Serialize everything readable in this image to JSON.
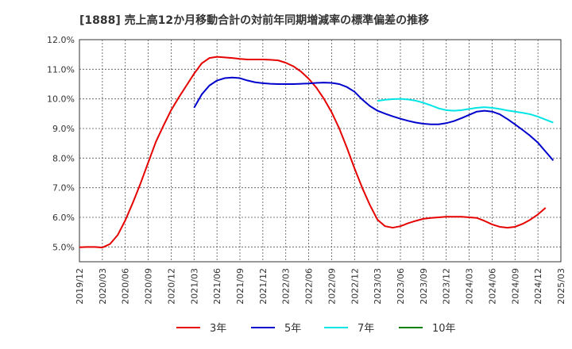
{
  "chart_data": {
    "type": "line",
    "title": "[1888]  売上高12か月移動合計の対前年同期増減率の標準偏差の推移",
    "xlabel": "",
    "ylabel": "",
    "ylim": [
      4.5,
      12.0
    ],
    "y_ticks": [
      "5.0%",
      "6.0%",
      "7.0%",
      "8.0%",
      "9.0%",
      "10.0%",
      "11.0%",
      "12.0%"
    ],
    "x_ticks": [
      "2019/12",
      "2020/03",
      "2020/06",
      "2020/09",
      "2020/12",
      "2021/03",
      "2021/06",
      "2021/09",
      "2021/12",
      "2022/03",
      "2022/06",
      "2022/09",
      "2022/12",
      "2023/03",
      "2023/06",
      "2023/09",
      "2023/12",
      "2024/03",
      "2024/06",
      "2024/09",
      "2024/12",
      "2025/03"
    ],
    "grid": "dotted, vertical and horizontal",
    "legend_position": "bottom",
    "series": [
      {
        "name": "3年",
        "color": "#e60000",
        "points": [
          [
            "2019/12",
            4.99
          ],
          [
            "2020/01",
            5.0
          ],
          [
            "2020/02",
            5.0
          ],
          [
            "2020/03",
            4.98
          ],
          [
            "2020/04",
            5.1
          ],
          [
            "2020/05",
            5.4
          ],
          [
            "2020/06",
            5.9
          ],
          [
            "2020/07",
            6.5
          ],
          [
            "2020/08",
            7.15
          ],
          [
            "2020/09",
            7.85
          ],
          [
            "2020/10",
            8.55
          ],
          [
            "2020/11",
            9.1
          ],
          [
            "2020/12",
            9.62
          ],
          [
            "2021/01",
            10.05
          ],
          [
            "2021/02",
            10.45
          ],
          [
            "2021/03",
            10.85
          ],
          [
            "2021/04",
            11.2
          ],
          [
            "2021/05",
            11.38
          ],
          [
            "2021/06",
            11.42
          ],
          [
            "2021/07",
            11.4
          ],
          [
            "2021/08",
            11.38
          ],
          [
            "2021/09",
            11.35
          ],
          [
            "2021/10",
            11.33
          ],
          [
            "2021/11",
            11.33
          ],
          [
            "2021/12",
            11.33
          ],
          [
            "2022/01",
            11.32
          ],
          [
            "2022/02",
            11.3
          ],
          [
            "2022/03",
            11.22
          ],
          [
            "2022/04",
            11.1
          ],
          [
            "2022/05",
            10.92
          ],
          [
            "2022/06",
            10.68
          ],
          [
            "2022/07",
            10.38
          ],
          [
            "2022/08",
            10.0
          ],
          [
            "2022/09",
            9.55
          ],
          [
            "2022/10",
            9.0
          ],
          [
            "2022/11",
            8.35
          ],
          [
            "2022/12",
            7.65
          ],
          [
            "2023/01",
            7.0
          ],
          [
            "2023/02",
            6.42
          ],
          [
            "2023/03",
            5.92
          ],
          [
            "2023/04",
            5.7
          ],
          [
            "2023/05",
            5.65
          ],
          [
            "2023/06",
            5.7
          ],
          [
            "2023/07",
            5.8
          ],
          [
            "2023/08",
            5.88
          ],
          [
            "2023/09",
            5.95
          ],
          [
            "2023/10",
            5.98
          ],
          [
            "2023/11",
            6.0
          ],
          [
            "2023/12",
            6.02
          ],
          [
            "2024/01",
            6.02
          ],
          [
            "2024/02",
            6.02
          ],
          [
            "2024/03",
            6.0
          ],
          [
            "2024/04",
            5.98
          ],
          [
            "2024/05",
            5.88
          ],
          [
            "2024/06",
            5.76
          ],
          [
            "2024/07",
            5.68
          ],
          [
            "2024/08",
            5.65
          ],
          [
            "2024/09",
            5.68
          ],
          [
            "2024/10",
            5.78
          ],
          [
            "2024/11",
            5.92
          ],
          [
            "2024/12",
            6.1
          ],
          [
            "2025/01",
            6.32
          ]
        ]
      },
      {
        "name": "5年",
        "color": "#0000cc",
        "points": [
          [
            "2021/03",
            9.7
          ],
          [
            "2021/04",
            10.15
          ],
          [
            "2021/05",
            10.45
          ],
          [
            "2021/06",
            10.62
          ],
          [
            "2021/07",
            10.7
          ],
          [
            "2021/08",
            10.72
          ],
          [
            "2021/09",
            10.7
          ],
          [
            "2021/10",
            10.62
          ],
          [
            "2021/11",
            10.56
          ],
          [
            "2021/12",
            10.53
          ],
          [
            "2022/01",
            10.51
          ],
          [
            "2022/02",
            10.5
          ],
          [
            "2022/03",
            10.5
          ],
          [
            "2022/04",
            10.5
          ],
          [
            "2022/05",
            10.51
          ],
          [
            "2022/06",
            10.52
          ],
          [
            "2022/07",
            10.54
          ],
          [
            "2022/08",
            10.55
          ],
          [
            "2022/09",
            10.54
          ],
          [
            "2022/10",
            10.5
          ],
          [
            "2022/11",
            10.4
          ],
          [
            "2022/12",
            10.24
          ],
          [
            "2023/01",
            9.98
          ],
          [
            "2023/02",
            9.76
          ],
          [
            "2023/03",
            9.6
          ],
          [
            "2023/04",
            9.5
          ],
          [
            "2023/05",
            9.41
          ],
          [
            "2023/06",
            9.33
          ],
          [
            "2023/07",
            9.26
          ],
          [
            "2023/08",
            9.2
          ],
          [
            "2023/09",
            9.16
          ],
          [
            "2023/10",
            9.14
          ],
          [
            "2023/11",
            9.14
          ],
          [
            "2023/12",
            9.18
          ],
          [
            "2024/01",
            9.25
          ],
          [
            "2024/02",
            9.35
          ],
          [
            "2024/03",
            9.46
          ],
          [
            "2024/04",
            9.57
          ],
          [
            "2024/05",
            9.6
          ],
          [
            "2024/06",
            9.57
          ],
          [
            "2024/07",
            9.48
          ],
          [
            "2024/08",
            9.32
          ],
          [
            "2024/09",
            9.14
          ],
          [
            "2024/10",
            8.95
          ],
          [
            "2024/11",
            8.75
          ],
          [
            "2024/12",
            8.52
          ],
          [
            "2025/01",
            8.22
          ],
          [
            "2025/02",
            7.92
          ]
        ]
      },
      {
        "name": "7年",
        "color": "#00e5e5",
        "points": [
          [
            "2023/03",
            9.93
          ],
          [
            "2023/04",
            9.97
          ],
          [
            "2023/05",
            9.99
          ],
          [
            "2023/06",
            10.0
          ],
          [
            "2023/07",
            9.98
          ],
          [
            "2023/08",
            9.94
          ],
          [
            "2023/09",
            9.87
          ],
          [
            "2023/10",
            9.78
          ],
          [
            "2023/11",
            9.68
          ],
          [
            "2023/12",
            9.62
          ],
          [
            "2024/01",
            9.6
          ],
          [
            "2024/02",
            9.62
          ],
          [
            "2024/03",
            9.66
          ],
          [
            "2024/04",
            9.7
          ],
          [
            "2024/05",
            9.72
          ],
          [
            "2024/06",
            9.7
          ],
          [
            "2024/07",
            9.66
          ],
          [
            "2024/08",
            9.61
          ],
          [
            "2024/09",
            9.57
          ],
          [
            "2024/10",
            9.53
          ],
          [
            "2024/11",
            9.48
          ],
          [
            "2024/12",
            9.4
          ],
          [
            "2025/01",
            9.3
          ],
          [
            "2025/02",
            9.2
          ]
        ]
      },
      {
        "name": "10年",
        "color": "#008000",
        "points": []
      }
    ]
  }
}
